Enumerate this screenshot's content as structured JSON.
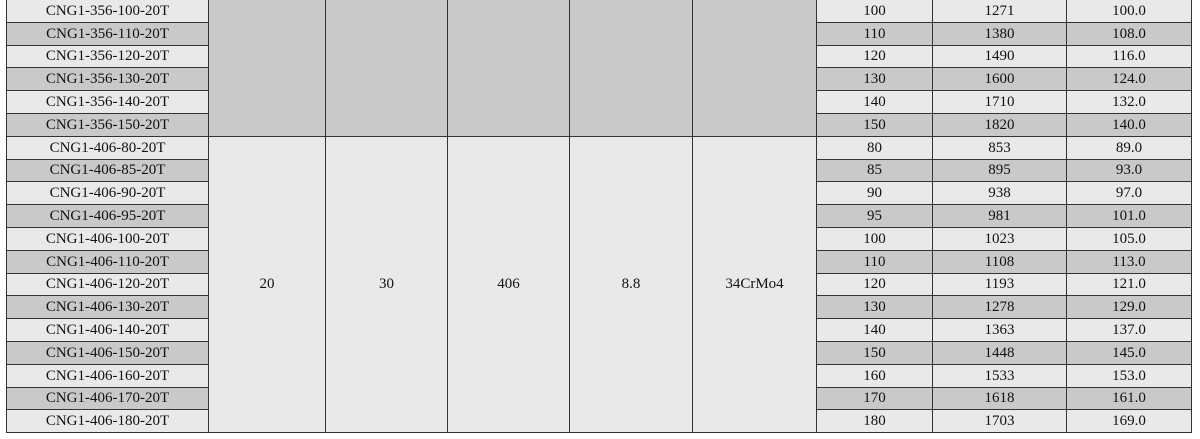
{
  "colors": {
    "light_row": "#e9e9e9",
    "dark_row": "#c9c9c9",
    "border": "#333333"
  },
  "groups": [
    {
      "shared": [
        "",
        "",
        "",
        "",
        ""
      ],
      "shade": "dark",
      "rows": [
        {
          "model": "CNG1-356-100-20T",
          "c1": "100",
          "c2": "1271",
          "c3": "100.0"
        },
        {
          "model": "CNG1-356-110-20T",
          "c1": "110",
          "c2": "1380",
          "c3": "108.0"
        },
        {
          "model": "CNG1-356-120-20T",
          "c1": "120",
          "c2": "1490",
          "c3": "116.0"
        },
        {
          "model": "CNG1-356-130-20T",
          "c1": "130",
          "c2": "1600",
          "c3": "124.0"
        },
        {
          "model": "CNG1-356-140-20T",
          "c1": "140",
          "c2": "1710",
          "c3": "132.0"
        },
        {
          "model": "CNG1-356-150-20T",
          "c1": "150",
          "c2": "1820",
          "c3": "140.0"
        }
      ]
    },
    {
      "shared": [
        "20",
        "30",
        "406",
        "8.8",
        "34CrMo4"
      ],
      "shade": "light",
      "rows": [
        {
          "model": "CNG1-406-80-20T",
          "c1": "80",
          "c2": "853",
          "c3": "89.0"
        },
        {
          "model": "CNG1-406-85-20T",
          "c1": "85",
          "c2": "895",
          "c3": "93.0"
        },
        {
          "model": "CNG1-406-90-20T",
          "c1": "90",
          "c2": "938",
          "c3": "97.0"
        },
        {
          "model": "CNG1-406-95-20T",
          "c1": "95",
          "c2": "981",
          "c3": "101.0"
        },
        {
          "model": "CNG1-406-100-20T",
          "c1": "100",
          "c2": "1023",
          "c3": "105.0"
        },
        {
          "model": "CNG1-406-110-20T",
          "c1": "110",
          "c2": "1108",
          "c3": "113.0"
        },
        {
          "model": "CNG1-406-120-20T",
          "c1": "120",
          "c2": "1193",
          "c3": "121.0"
        },
        {
          "model": "CNG1-406-130-20T",
          "c1": "130",
          "c2": "1278",
          "c3": "129.0"
        },
        {
          "model": "CNG1-406-140-20T",
          "c1": "140",
          "c2": "1363",
          "c3": "137.0"
        },
        {
          "model": "CNG1-406-150-20T",
          "c1": "150",
          "c2": "1448",
          "c3": "145.0"
        },
        {
          "model": "CNG1-406-160-20T",
          "c1": "160",
          "c2": "1533",
          "c3": "153.0"
        },
        {
          "model": "CNG1-406-170-20T",
          "c1": "170",
          "c2": "1618",
          "c3": "161.0"
        },
        {
          "model": "CNG1-406-180-20T",
          "c1": "180",
          "c2": "1703",
          "c3": "169.0"
        }
      ]
    }
  ]
}
